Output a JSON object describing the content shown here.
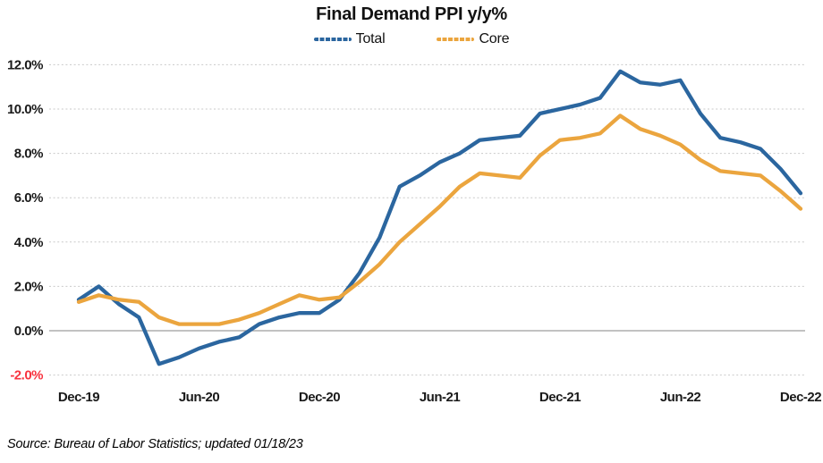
{
  "title": "Final Demand PPI y/y%",
  "source_note": "Source: Bureau of Labor Statistics; updated 01/18/23",
  "colors": {
    "total_line": "#2B669F",
    "core_line": "#EBA53E",
    "gridline": "#C9C9C9",
    "zero_line": "#9E9E9E",
    "tick_label": "#1A1A1A",
    "negative_tick_label": "#F8333F",
    "title_text": "#121212"
  },
  "chart_data": {
    "type": "line",
    "title": "Final Demand PPI y/y%",
    "xlabel": "",
    "ylabel": "",
    "legend_position": "top-center",
    "grid": "horizontal dotted; zero line solid",
    "ylim": [
      -2.9,
      12.6
    ],
    "y_axis": {
      "min": -2,
      "max": 12,
      "step": 2,
      "format": "percent"
    },
    "x": [
      "Dec-19",
      "Jan-20",
      "Feb-20",
      "Mar-20",
      "Apr-20",
      "May-20",
      "Jun-20",
      "Jul-20",
      "Aug-20",
      "Sep-20",
      "Oct-20",
      "Nov-20",
      "Dec-20",
      "Jan-21",
      "Feb-21",
      "Mar-21",
      "Apr-21",
      "May-21",
      "Jun-21",
      "Jul-21",
      "Aug-21",
      "Sep-21",
      "Oct-21",
      "Nov-21",
      "Dec-21",
      "Jan-22",
      "Feb-22",
      "Mar-22",
      "Apr-22",
      "May-22",
      "Jun-22",
      "Jul-22",
      "Aug-22",
      "Sep-22",
      "Oct-22",
      "Nov-22",
      "Dec-22"
    ],
    "series": [
      {
        "name": "Total",
        "color": "#2B669F",
        "values": [
          1.4,
          2.0,
          1.2,
          0.6,
          -1.5,
          -1.2,
          -0.8,
          -0.5,
          -0.3,
          0.3,
          0.6,
          0.8,
          0.8,
          1.4,
          2.6,
          4.2,
          6.5,
          7.0,
          7.6,
          8.0,
          8.6,
          8.7,
          8.8,
          9.8,
          10.0,
          10.2,
          10.5,
          11.7,
          11.2,
          11.1,
          11.3,
          9.8,
          8.7,
          8.5,
          8.2,
          7.3,
          6.2
        ]
      },
      {
        "name": "Core",
        "color": "#EBA53E",
        "values": [
          1.3,
          1.6,
          1.4,
          1.3,
          0.6,
          0.3,
          0.3,
          0.3,
          0.5,
          0.8,
          1.2,
          1.6,
          1.4,
          1.5,
          2.2,
          3.0,
          4.0,
          4.8,
          5.6,
          6.5,
          7.1,
          7.0,
          6.9,
          7.9,
          8.6,
          8.7,
          8.9,
          9.7,
          9.1,
          8.8,
          8.4,
          7.7,
          7.2,
          7.1,
          7.0,
          6.3,
          5.5
        ]
      }
    ],
    "y_ticks": [
      {
        "label": "12.0%",
        "value": 12
      },
      {
        "label": "10.0%",
        "value": 10
      },
      {
        "label": "8.0%",
        "value": 8
      },
      {
        "label": "6.0%",
        "value": 6
      },
      {
        "label": "4.0%",
        "value": 4
      },
      {
        "label": "2.0%",
        "value": 2
      },
      {
        "label": "0.0%",
        "value": 0
      },
      {
        "label": "-2.0%",
        "value": -2
      }
    ],
    "x_ticks": [
      {
        "label": "Dec-19",
        "index": 0
      },
      {
        "label": "Jun-20",
        "index": 6
      },
      {
        "label": "Dec-20",
        "index": 12
      },
      {
        "label": "Jun-21",
        "index": 18
      },
      {
        "label": "Dec-21",
        "index": 24
      },
      {
        "label": "Jun-22",
        "index": 30
      },
      {
        "label": "Dec-22",
        "index": 36
      }
    ]
  }
}
